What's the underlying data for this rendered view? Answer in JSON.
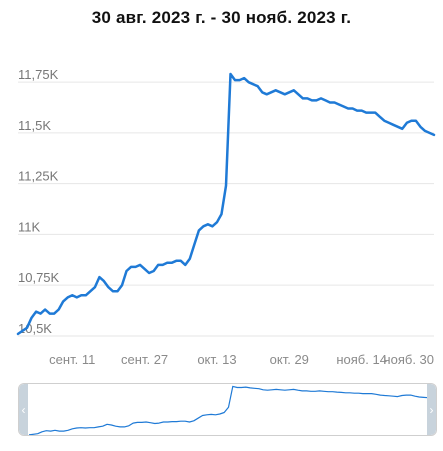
{
  "header": {
    "title": "30 авг. 2023 г. - 30 нояб. 2023 г."
  },
  "chart_data": {
    "type": "line",
    "title": "30 авг. 2023 г. - 30 нояб. 2023 г.",
    "y_tick_labels": [
      "10,5K",
      "10,75K",
      "11K",
      "11,25K",
      "11,5K",
      "11,75K"
    ],
    "y_tick_values": [
      10500,
      10750,
      11000,
      11250,
      11500,
      11750
    ],
    "ylim": [
      10480,
      11800
    ],
    "x_tick_labels": [
      "сент. 11",
      "сент. 27",
      "окт. 13",
      "окт. 29",
      "нояб. 14",
      "нояб. 30"
    ],
    "x_tick_dates": [
      "2023-09-11",
      "2023-09-27",
      "2023-10-13",
      "2023-10-29",
      "2023-11-14",
      "2023-11-30"
    ],
    "x_range": [
      "2023-08-30",
      "2023-11-30"
    ],
    "grid": "horizontal",
    "series": [
      {
        "color": "#1f7ad6",
        "points": [
          [
            "2023-08-30",
            10510
          ],
          [
            "2023-09-01",
            10540
          ],
          [
            "2023-09-02",
            10590
          ],
          [
            "2023-09-03",
            10620
          ],
          [
            "2023-09-04",
            10610
          ],
          [
            "2023-09-05",
            10630
          ],
          [
            "2023-09-06",
            10610
          ],
          [
            "2023-09-07",
            10610
          ],
          [
            "2023-09-08",
            10630
          ],
          [
            "2023-09-09",
            10670
          ],
          [
            "2023-09-10",
            10690
          ],
          [
            "2023-09-11",
            10700
          ],
          [
            "2023-09-12",
            10690
          ],
          [
            "2023-09-13",
            10700
          ],
          [
            "2023-09-14",
            10700
          ],
          [
            "2023-09-15",
            10720
          ],
          [
            "2023-09-16",
            10740
          ],
          [
            "2023-09-17",
            10790
          ],
          [
            "2023-09-18",
            10770
          ],
          [
            "2023-09-19",
            10740
          ],
          [
            "2023-09-20",
            10720
          ],
          [
            "2023-09-21",
            10720
          ],
          [
            "2023-09-22",
            10750
          ],
          [
            "2023-09-23",
            10820
          ],
          [
            "2023-09-24",
            10840
          ],
          [
            "2023-09-25",
            10840
          ],
          [
            "2023-09-26",
            10850
          ],
          [
            "2023-09-27",
            10830
          ],
          [
            "2023-09-28",
            10810
          ],
          [
            "2023-09-29",
            10820
          ],
          [
            "2023-09-30",
            10850
          ],
          [
            "2023-10-01",
            10850
          ],
          [
            "2023-10-02",
            10860
          ],
          [
            "2023-10-03",
            10860
          ],
          [
            "2023-10-04",
            10870
          ],
          [
            "2023-10-05",
            10870
          ],
          [
            "2023-10-06",
            10850
          ],
          [
            "2023-10-07",
            10880
          ],
          [
            "2023-10-08",
            10950
          ],
          [
            "2023-10-09",
            11020
          ],
          [
            "2023-10-10",
            11040
          ],
          [
            "2023-10-11",
            11050
          ],
          [
            "2023-10-12",
            11040
          ],
          [
            "2023-10-13",
            11060
          ],
          [
            "2023-10-14",
            11100
          ],
          [
            "2023-10-15",
            11240
          ],
          [
            "2023-10-16",
            11790
          ],
          [
            "2023-10-17",
            11760
          ],
          [
            "2023-10-18",
            11760
          ],
          [
            "2023-10-19",
            11770
          ],
          [
            "2023-10-20",
            11750
          ],
          [
            "2023-10-21",
            11740
          ],
          [
            "2023-10-22",
            11730
          ],
          [
            "2023-10-23",
            11700
          ],
          [
            "2023-10-24",
            11690
          ],
          [
            "2023-10-25",
            11700
          ],
          [
            "2023-10-26",
            11710
          ],
          [
            "2023-10-27",
            11700
          ],
          [
            "2023-10-28",
            11690
          ],
          [
            "2023-10-29",
            11700
          ],
          [
            "2023-10-30",
            11710
          ],
          [
            "2023-10-31",
            11690
          ],
          [
            "2023-11-01",
            11670
          ],
          [
            "2023-11-02",
            11670
          ],
          [
            "2023-11-03",
            11660
          ],
          [
            "2023-11-04",
            11660
          ],
          [
            "2023-11-05",
            11670
          ],
          [
            "2023-11-06",
            11660
          ],
          [
            "2023-11-07",
            11650
          ],
          [
            "2023-11-08",
            11650
          ],
          [
            "2023-11-09",
            11640
          ],
          [
            "2023-11-10",
            11630
          ],
          [
            "2023-11-11",
            11620
          ],
          [
            "2023-11-12",
            11620
          ],
          [
            "2023-11-13",
            11610
          ],
          [
            "2023-11-14",
            11610
          ],
          [
            "2023-11-15",
            11600
          ],
          [
            "2023-11-16",
            11600
          ],
          [
            "2023-11-17",
            11600
          ],
          [
            "2023-11-18",
            11580
          ],
          [
            "2023-11-19",
            11560
          ],
          [
            "2023-11-20",
            11550
          ],
          [
            "2023-11-21",
            11540
          ],
          [
            "2023-11-22",
            11530
          ],
          [
            "2023-11-23",
            11520
          ],
          [
            "2023-11-24",
            11550
          ],
          [
            "2023-11-25",
            11560
          ],
          [
            "2023-11-26",
            11560
          ],
          [
            "2023-11-27",
            11530
          ],
          [
            "2023-11-28",
            11510
          ],
          [
            "2023-11-29",
            11500
          ],
          [
            "2023-11-30",
            11490
          ]
        ]
      }
    ]
  },
  "navigator": {
    "left_handle_icon": "chevron-left-icon",
    "left_handle_glyph": "‹",
    "right_handle_icon": "chevron-right-icon",
    "right_handle_glyph": "›"
  }
}
